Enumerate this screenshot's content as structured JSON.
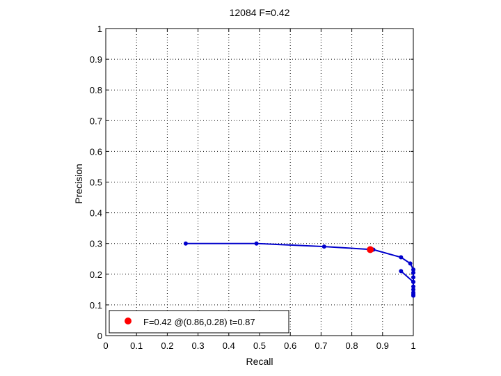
{
  "chart_data": {
    "type": "line",
    "title": "12084 F=0.42",
    "xlabel": "Recall",
    "ylabel": "Precision",
    "xlim": [
      0,
      1
    ],
    "ylim": [
      0,
      1
    ],
    "xticks": [
      0,
      0.1,
      0.2,
      0.3,
      0.4,
      0.5,
      0.6,
      0.7,
      0.8,
      0.9,
      1
    ],
    "yticks": [
      0,
      0.1,
      0.2,
      0.3,
      0.4,
      0.5,
      0.6,
      0.7,
      0.8,
      0.9,
      1
    ],
    "xtick_labels": [
      "0",
      "0.1",
      "0.2",
      "0.3",
      "0.4",
      "0.5",
      "0.6",
      "0.7",
      "0.8",
      "0.9",
      "1"
    ],
    "ytick_labels": [
      "0",
      "0.1",
      "0.2",
      "0.3",
      "0.4",
      "0.5",
      "0.6",
      "0.7",
      "0.8",
      "0.9",
      "1"
    ],
    "grid": true,
    "grid_style": "dotted",
    "series": [
      {
        "color": "#0000cc",
        "x": [
          0.26,
          0.49,
          0.71,
          0.87,
          0.96,
          0.99,
          1.0,
          1.0,
          1.0,
          1.0,
          1.0,
          1.0,
          1.0,
          1.0,
          1.0,
          1.0,
          0.96
        ],
        "y": [
          0.3,
          0.3,
          0.29,
          0.28,
          0.255,
          0.235,
          0.215,
          0.205,
          0.19,
          0.175,
          0.16,
          0.15,
          0.14,
          0.135,
          0.13,
          0.175,
          0.21
        ]
      }
    ],
    "highlight_point": {
      "x": 0.86,
      "y": 0.28,
      "color": "#ff0000"
    },
    "legend": {
      "placement": "bottom-left",
      "label": "F=0.42 @(0.86,0.28) t=0.87"
    }
  }
}
